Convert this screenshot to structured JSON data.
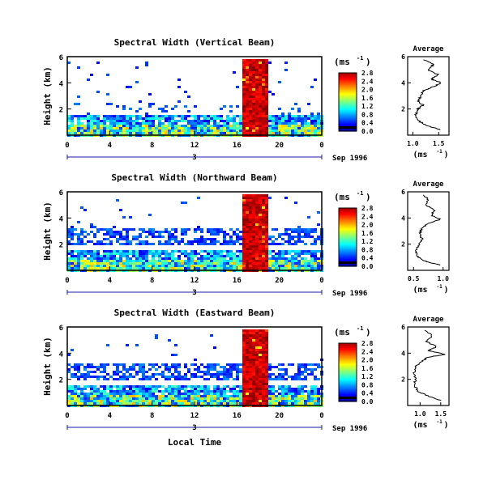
{
  "chart_data": [
    {
      "type": "heatmap",
      "title": "Spectral Width (Vertical Beam)",
      "ylabel": "Height (km)",
      "yticks": [
        "2",
        "4",
        "6"
      ],
      "xticks": [
        "0",
        "4",
        "8",
        "12",
        "16",
        "20",
        "0"
      ],
      "date_label": "Sep 1996",
      "day_marker": "3",
      "colorbar_unit": "(ms-1)",
      "colorbar_ticks": [
        "0.0",
        "0.4",
        "0.8",
        "1.2",
        "1.6",
        "2.0",
        "2.4",
        "2.8"
      ],
      "ylim": [
        0,
        6
      ],
      "xlim": [
        0,
        24
      ],
      "average": {
        "title": "Average",
        "xlabel": "(ms-1)",
        "xticks": [
          "1.0",
          "1.5"
        ],
        "yticks": [
          "2",
          "4",
          "6"
        ],
        "xlim": [
          0.9,
          1.7
        ],
        "profile": [
          [
            1.55,
            0.4
          ],
          [
            1.3,
            0.7
          ],
          [
            1.15,
            1.0
          ],
          [
            1.05,
            1.5
          ],
          [
            1.1,
            2.0
          ],
          [
            1.2,
            2.3
          ],
          [
            1.1,
            2.6
          ],
          [
            1.15,
            3.0
          ],
          [
            1.2,
            3.4
          ],
          [
            1.4,
            3.7
          ],
          [
            1.55,
            4.0
          ],
          [
            1.35,
            4.3
          ],
          [
            1.5,
            4.6
          ],
          [
            1.3,
            5.0
          ],
          [
            1.4,
            5.4
          ],
          [
            1.2,
            5.8
          ]
        ]
      }
    },
    {
      "type": "heatmap",
      "title": "Spectral Width (Northward Beam)",
      "ylabel": "Height (km)",
      "yticks": [
        "2",
        "4",
        "6"
      ],
      "xticks": [
        "0",
        "4",
        "8",
        "12",
        "16",
        "20",
        "0"
      ],
      "date_label": "Sep 1996",
      "day_marker": "3",
      "colorbar_unit": "(ms-1)",
      "colorbar_ticks": [
        "0.0",
        "0.4",
        "0.8",
        "1.2",
        "1.6",
        "2.0",
        "2.4",
        "2.8"
      ],
      "ylim": [
        0,
        6
      ],
      "xlim": [
        0,
        24
      ],
      "average": {
        "title": "Average",
        "xlabel": "(ms-1)",
        "xticks": [
          "0.5",
          "1.0"
        ],
        "yticks": [
          "2",
          "4",
          "6"
        ],
        "xlim": [
          0.4,
          1.1
        ],
        "profile": [
          [
            0.95,
            0.4
          ],
          [
            0.7,
            0.7
          ],
          [
            0.55,
            1.1
          ],
          [
            0.55,
            1.6
          ],
          [
            0.6,
            2.0
          ],
          [
            0.65,
            2.4
          ],
          [
            0.6,
            2.8
          ],
          [
            0.65,
            3.2
          ],
          [
            0.75,
            3.6
          ],
          [
            0.95,
            3.9
          ],
          [
            0.8,
            4.2
          ],
          [
            0.85,
            4.6
          ],
          [
            0.7,
            5.0
          ],
          [
            0.75,
            5.5
          ],
          [
            0.65,
            5.8
          ]
        ]
      }
    },
    {
      "type": "heatmap",
      "title": "Spectral Width (Eastward Beam)",
      "ylabel": "Height (km)",
      "yticks": [
        "2",
        "4",
        "6"
      ],
      "xticks": [
        "0",
        "4",
        "8",
        "12",
        "16",
        "20",
        "0"
      ],
      "date_label": "Sep 1996",
      "day_marker": "3",
      "colorbar_unit": "(ms-1)",
      "colorbar_ticks": [
        "0.0",
        "0.4",
        "0.8",
        "1.2",
        "1.6",
        "2.0",
        "2.4",
        "2.8"
      ],
      "xlabel": "Local Time",
      "ylim": [
        0,
        6
      ],
      "xlim": [
        0,
        24
      ],
      "average": {
        "title": "Average",
        "xlabel": "(ms-1)",
        "xticks": [
          "1.0",
          "1.5"
        ],
        "yticks": [
          "2",
          "4",
          "6"
        ],
        "xlim": [
          0.7,
          1.7
        ],
        "profile": [
          [
            1.5,
            0.4
          ],
          [
            1.2,
            0.7
          ],
          [
            0.95,
            1.1
          ],
          [
            0.85,
            1.6
          ],
          [
            0.9,
            2.0
          ],
          [
            0.85,
            2.5
          ],
          [
            0.9,
            3.0
          ],
          [
            1.05,
            3.4
          ],
          [
            1.2,
            3.7
          ],
          [
            1.6,
            3.9
          ],
          [
            1.2,
            4.2
          ],
          [
            1.4,
            4.5
          ],
          [
            1.15,
            4.9
          ],
          [
            1.3,
            5.3
          ],
          [
            1.1,
            5.8
          ]
        ]
      }
    }
  ]
}
